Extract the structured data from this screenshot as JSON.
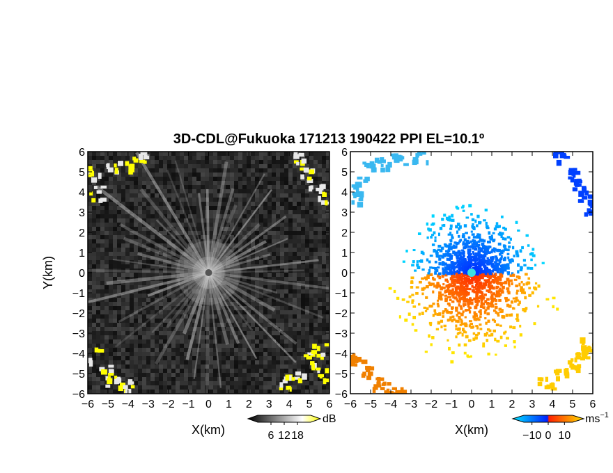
{
  "chart_data": [
    {
      "type": "heatmap",
      "panel": "reflectivity",
      "title": "3D-CDL@Fukuoka 171213 190422 PPI EL=10.1º",
      "xlabel": "X(km)",
      "ylabel": "Y(km)",
      "xlim": [
        -6,
        6
      ],
      "ylim": [
        -6,
        6
      ],
      "x_ticks": [
        "−6",
        "−5",
        "−4",
        "−3",
        "−2",
        "−1",
        "0",
        "1",
        "2",
        "3",
        "4",
        "5",
        "6"
      ],
      "y_ticks": [
        "−6",
        "−5",
        "−4",
        "−3",
        "−2",
        "−1",
        "0",
        "1",
        "2",
        "3",
        "4",
        "5",
        "6"
      ],
      "colorbar": {
        "unit": "dB",
        "tick_labels": [
          "6",
          "12",
          "18"
        ],
        "tick_values": [
          6,
          12,
          18
        ],
        "range": [
          0,
          24
        ],
        "colors": [
          "#000000",
          "#ffffff",
          "#ffff00"
        ]
      }
    },
    {
      "type": "heatmap",
      "panel": "doppler_velocity",
      "xlabel": "X(km)",
      "xlim": [
        -6,
        6
      ],
      "ylim": [
        -6,
        6
      ],
      "x_ticks": [
        "−6",
        "−5",
        "−4",
        "−3",
        "−2",
        "−1",
        "0",
        "1",
        "2",
        "3",
        "4",
        "5",
        "6"
      ],
      "y_ticks": [
        "−6",
        "−5",
        "−4",
        "−3",
        "−2",
        "−1",
        "0",
        "1",
        "2",
        "3",
        "4",
        "5",
        "6"
      ],
      "colorbar": {
        "unit": "ms",
        "unit_superscript": "−1",
        "tick_labels": [
          "−10",
          "0",
          "10"
        ],
        "tick_values": [
          -10,
          0,
          10
        ],
        "range": [
          -15,
          15
        ],
        "colors": [
          "#00e5ff",
          "#0020ff",
          "#ff2000",
          "#ffe000"
        ]
      }
    }
  ]
}
